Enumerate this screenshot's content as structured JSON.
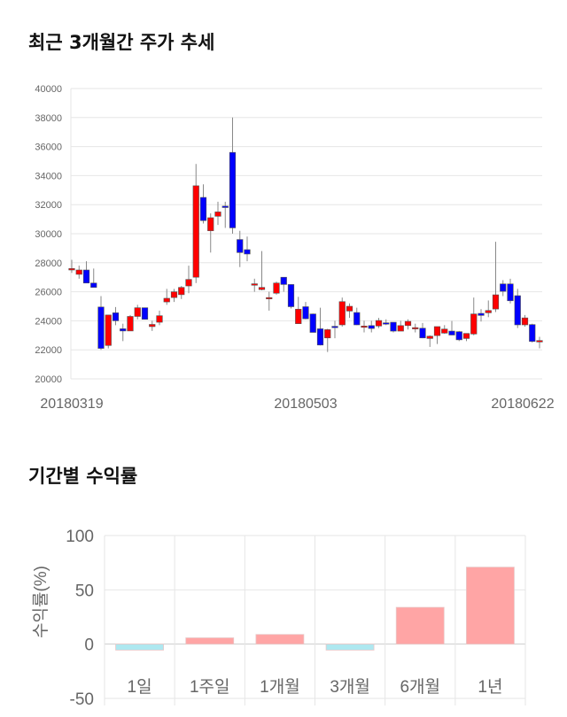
{
  "chart_data": [
    {
      "type": "candlestick",
      "title": "최근 3개월간 주가 추세",
      "ylim": [
        20000,
        40000
      ],
      "yticks": [
        20000,
        22000,
        24000,
        26000,
        28000,
        30000,
        32000,
        34000,
        36000,
        38000,
        40000
      ],
      "xtick_labels": [
        {
          "index": 0,
          "label": "20180319"
        },
        {
          "index": 32,
          "label": "20180503"
        },
        {
          "index": 63,
          "label": "20180622"
        }
      ],
      "grid": true,
      "colors": {
        "up": "#ff0000",
        "down": "#0000ff"
      },
      "ohlc_fields": [
        "open",
        "high",
        "low",
        "close"
      ],
      "candles": [
        [
          27500,
          28200,
          27300,
          27600
        ],
        [
          27200,
          27800,
          26900,
          27500
        ],
        [
          27500,
          28100,
          26600,
          26600
        ],
        [
          26600,
          27600,
          26300,
          26300
        ],
        [
          24950,
          25700,
          22000,
          22100
        ],
        [
          22300,
          24400,
          22100,
          24400
        ],
        [
          24550,
          24950,
          23700,
          24000
        ],
        [
          23450,
          23800,
          22600,
          23300
        ],
        [
          23300,
          24400,
          23300,
          24300
        ],
        [
          24300,
          25100,
          24100,
          24900
        ],
        [
          24900,
          24900,
          24100,
          24100
        ],
        [
          23600,
          24000,
          23300,
          23750
        ],
        [
          23900,
          24700,
          23700,
          24350
        ],
        [
          25300,
          26200,
          25100,
          25550
        ],
        [
          25600,
          26200,
          25300,
          26000
        ],
        [
          25800,
          26400,
          25500,
          26300
        ],
        [
          26400,
          27800,
          25900,
          26850
        ],
        [
          27000,
          34800,
          26600,
          33300
        ],
        [
          32500,
          33400,
          30700,
          30900
        ],
        [
          30200,
          31400,
          28700,
          31100
        ],
        [
          31200,
          32200,
          30600,
          31500
        ],
        [
          31900,
          32200,
          30400,
          31800
        ],
        [
          35600,
          38000,
          30000,
          30400
        ],
        [
          29600,
          30200,
          27700,
          28700
        ],
        [
          28900,
          29800,
          28100,
          28600
        ],
        [
          26450,
          26900,
          26000,
          26550
        ],
        [
          26150,
          28800,
          26100,
          26300
        ],
        [
          25600,
          26000,
          24700,
          25600
        ],
        [
          25900,
          26700,
          25800,
          26600
        ],
        [
          27000,
          27000,
          26000,
          26500
        ],
        [
          26500,
          26500,
          24850,
          24970
        ],
        [
          23800,
          25650,
          23800,
          24800
        ],
        [
          24970,
          25300,
          24100,
          24140
        ],
        [
          24470,
          24500,
          23200,
          23200
        ],
        [
          23450,
          24900,
          22300,
          22330
        ],
        [
          22820,
          23450,
          21850,
          23390
        ],
        [
          23620,
          24000,
          22800,
          23600
        ],
        [
          23720,
          25600,
          23600,
          25320
        ],
        [
          24670,
          25200,
          24200,
          25000
        ],
        [
          24570,
          24900,
          23700,
          23720
        ],
        [
          23640,
          24000,
          23200,
          23640
        ],
        [
          23670,
          24000,
          23200,
          23470
        ],
        [
          23640,
          24200,
          23500,
          24020
        ],
        [
          23860,
          24100,
          23700,
          23820
        ],
        [
          23900,
          23900,
          23200,
          23290
        ],
        [
          23290,
          24000,
          23290,
          23670
        ],
        [
          23670,
          24100,
          23400,
          23960
        ],
        [
          23530,
          23800,
          23200,
          23530
        ],
        [
          23490,
          23850,
          22800,
          22820
        ],
        [
          22780,
          23000,
          22200,
          22940
        ],
        [
          22980,
          23600,
          22400,
          23600
        ],
        [
          23150,
          23700,
          23100,
          23430
        ],
        [
          23290,
          23990,
          23000,
          23020
        ],
        [
          23250,
          23300,
          22600,
          22690
        ],
        [
          22780,
          23130,
          22600,
          23130
        ],
        [
          23090,
          25600,
          23000,
          24470
        ],
        [
          24510,
          24800,
          23950,
          24370
        ],
        [
          24550,
          25400,
          24250,
          24710
        ],
        [
          24810,
          29440,
          24600,
          25790
        ],
        [
          26540,
          26800,
          25700,
          26030
        ],
        [
          26540,
          26900,
          25200,
          25380
        ],
        [
          25730,
          26200,
          23500,
          23720
        ],
        [
          23720,
          24400,
          23600,
          24200
        ],
        [
          23740,
          23800,
          22500,
          22580
        ],
        [
          22540,
          22900,
          22100,
          22640
        ]
      ]
    },
    {
      "type": "bar",
      "title": "기간별 수익률",
      "ylabel": "수익률(%)",
      "ylim": [
        -50,
        100
      ],
      "yticks": [
        -50,
        0,
        50,
        100
      ],
      "categories": [
        "1일",
        "1주일",
        "1개월",
        "3개월",
        "6개월",
        "1년"
      ],
      "values": [
        -5.5,
        5.8,
        8.9,
        -5.5,
        33.9,
        70.9
      ],
      "grid": true,
      "colors": {
        "positive": "#ffa5a5",
        "negative": "#aee8f0"
      }
    }
  ]
}
